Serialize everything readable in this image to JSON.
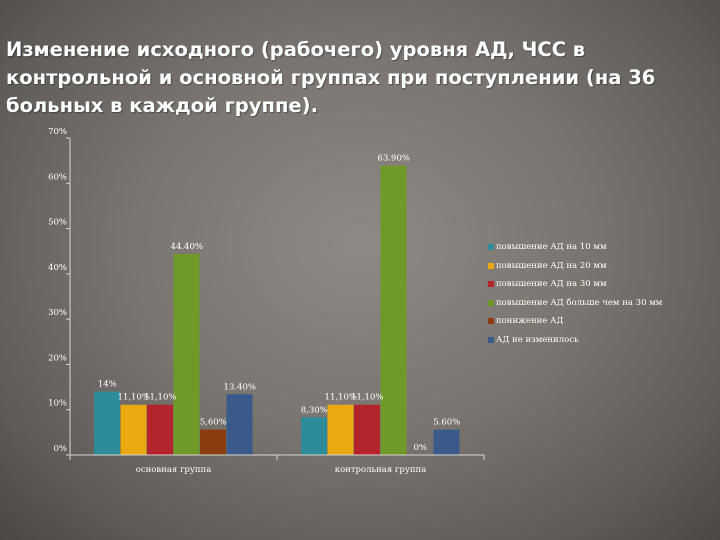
{
  "slide": {
    "title": "Изменение исходного (рабочего) уровня АД, ЧСС в контрольной и основной группах при поступлении (на 36 больных в каждой группе)."
  },
  "chart_data": {
    "type": "bar",
    "categories": [
      "основная группа",
      "контрольная группа"
    ],
    "ylim": [
      0,
      70
    ],
    "y_ticks": [
      "0%",
      "10%",
      "20%",
      "30%",
      "40%",
      "50%",
      "60%",
      "70%"
    ],
    "grid": false,
    "legend_position": "right",
    "series": [
      {
        "name": "повышение АД на 10 мм",
        "color": "#2e8c9a",
        "values": [
          14,
          8.3
        ],
        "labels": [
          "14%",
          "8,30%"
        ]
      },
      {
        "name": "повышение АД на 20 мм",
        "color": "#e8a911",
        "values": [
          11.1,
          11.1
        ],
        "labels": [
          "11,10%",
          "11,10%"
        ]
      },
      {
        "name": "повышение АД на 30 мм",
        "color": "#b3242c",
        "values": [
          11.1,
          11.1
        ],
        "labels": [
          "11,10%",
          "11,10%"
        ]
      },
      {
        "name": "повышение АД больше чем на 30 мм",
        "color": "#6f9a2a",
        "values": [
          44.4,
          63.9
        ],
        "labels": [
          "44.40%",
          "63.90%"
        ]
      },
      {
        "name": "понижение АД",
        "color": "#8a3c0c",
        "values": [
          5.6,
          0
        ],
        "labels": [
          "5,60%",
          "0%"
        ]
      },
      {
        "name": "АД не изменилось",
        "color": "#3a5a8c",
        "values": [
          13.4,
          5.6
        ],
        "labels": [
          "13.40%",
          "5.60%"
        ]
      }
    ]
  }
}
